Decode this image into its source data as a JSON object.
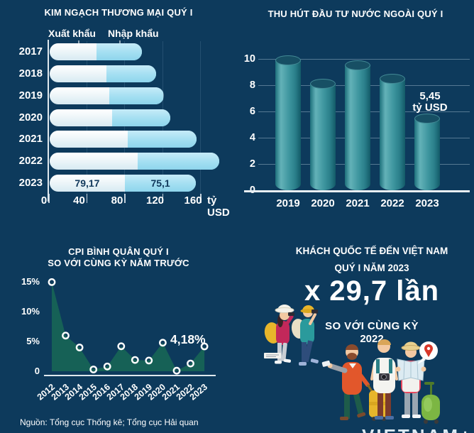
{
  "page": {
    "background": "#0d3a5c",
    "source_note": "Nguồn: Tổng cục Thống kê; Tổng cục Hải quan",
    "logo_text": "VIETNAM+"
  },
  "colors": {
    "background": "#0d3a5c",
    "text": "#ffffff",
    "export_bar": "#eef6f9",
    "import_bar": "#a6e0f2",
    "bar_label_navy": "#11395c",
    "cylinder_teal": "#3d959e",
    "cylinder_top": "#174f64",
    "area_green": "#166156",
    "marker_ring": "#ffffff",
    "pin_red": "#d8372a"
  },
  "trade": {
    "title": "KIM NGẠCH THƯƠNG MẠI QUÝ I",
    "legend_export": "Xuất khẩu",
    "legend_import": "Nhập khẩu",
    "unit": "tỷ USD"
  },
  "fdi": {
    "title": "THU HÚT ĐẦU TƯ NƯỚC NGOÀI QUÝ I",
    "annotation_value": "5,45",
    "annotation_unit": "tỷ USD"
  },
  "cpi": {
    "title_line1": "CPI BÌNH QUÂN QUÝ I",
    "title_line2": "SO VỚI CÙNG KỲ NĂM TRƯỚC",
    "annotation": "4,18%"
  },
  "visitors": {
    "title_line1": "KHÁCH QUỐC TẾ ĐẾN VIỆT NAM",
    "title_line2": "QUÝ I NĂM 2023",
    "headline": "x 29,7 lần",
    "subline1": "SO VỚI CÙNG KỲ",
    "subline2": "2022"
  },
  "chart_data": [
    {
      "type": "bar",
      "orientation": "horizontal-stacked",
      "title": "KIM NGẠCH THƯƠNG MẠI QUÝ I",
      "categories": [
        "2017",
        "2018",
        "2019",
        "2020",
        "2021",
        "2022",
        "2023"
      ],
      "series": [
        {
          "name": "Xuất khẩu",
          "values": [
            49,
            60,
            63,
            66,
            82,
            93,
            79.17
          ]
        },
        {
          "name": "Nhập khẩu",
          "values": [
            48,
            52,
            57,
            61,
            73,
            86,
            75.1
          ]
        }
      ],
      "bar_labels": {
        "year": "2023",
        "export": "79,17",
        "import": "75,1"
      },
      "x_ticks": [
        0,
        40,
        80,
        120,
        160
      ],
      "xlim": [
        0,
        178
      ],
      "xlabel": "tỷ USD",
      "legend_position": "top"
    },
    {
      "type": "bar",
      "orientation": "vertical-cylinder",
      "title": "THU HÚT ĐẦU TƯ NƯỚC NGOÀI QUÝ I",
      "categories": [
        "2019",
        "2020",
        "2021",
        "2022",
        "2023"
      ],
      "values": [
        9.9,
        8.1,
        9.5,
        8.5,
        5.45
      ],
      "y_ticks": [
        0,
        2,
        4,
        6,
        8,
        10
      ],
      "ylim": [
        0,
        10
      ],
      "unit": "tỷ USD",
      "annotation": {
        "text": "5,45 tỷ USD",
        "target": "2023"
      },
      "grid": true
    },
    {
      "type": "area",
      "title": "CPI BÌNH QUÂN QUÝ I SO VỚI CÙNG KỲ NĂM TRƯỚC",
      "categories": [
        "2012",
        "2013",
        "2014",
        "2015",
        "2016",
        "2017",
        "2018",
        "2019",
        "2020",
        "2021",
        "2022",
        "2023"
      ],
      "values": [
        15,
        6,
        4,
        0.3,
        0.8,
        4.2,
        1.9,
        1.8,
        4.8,
        0.1,
        1.3,
        4.18
      ],
      "y_tick_labels": [
        "15%",
        "10%",
        "5%",
        "0"
      ],
      "y_tick_values": [
        15,
        10,
        5,
        0
      ],
      "ylim": [
        0,
        15
      ],
      "annotation": {
        "text": "4,18%",
        "target": "2023"
      },
      "grid": false
    }
  ]
}
